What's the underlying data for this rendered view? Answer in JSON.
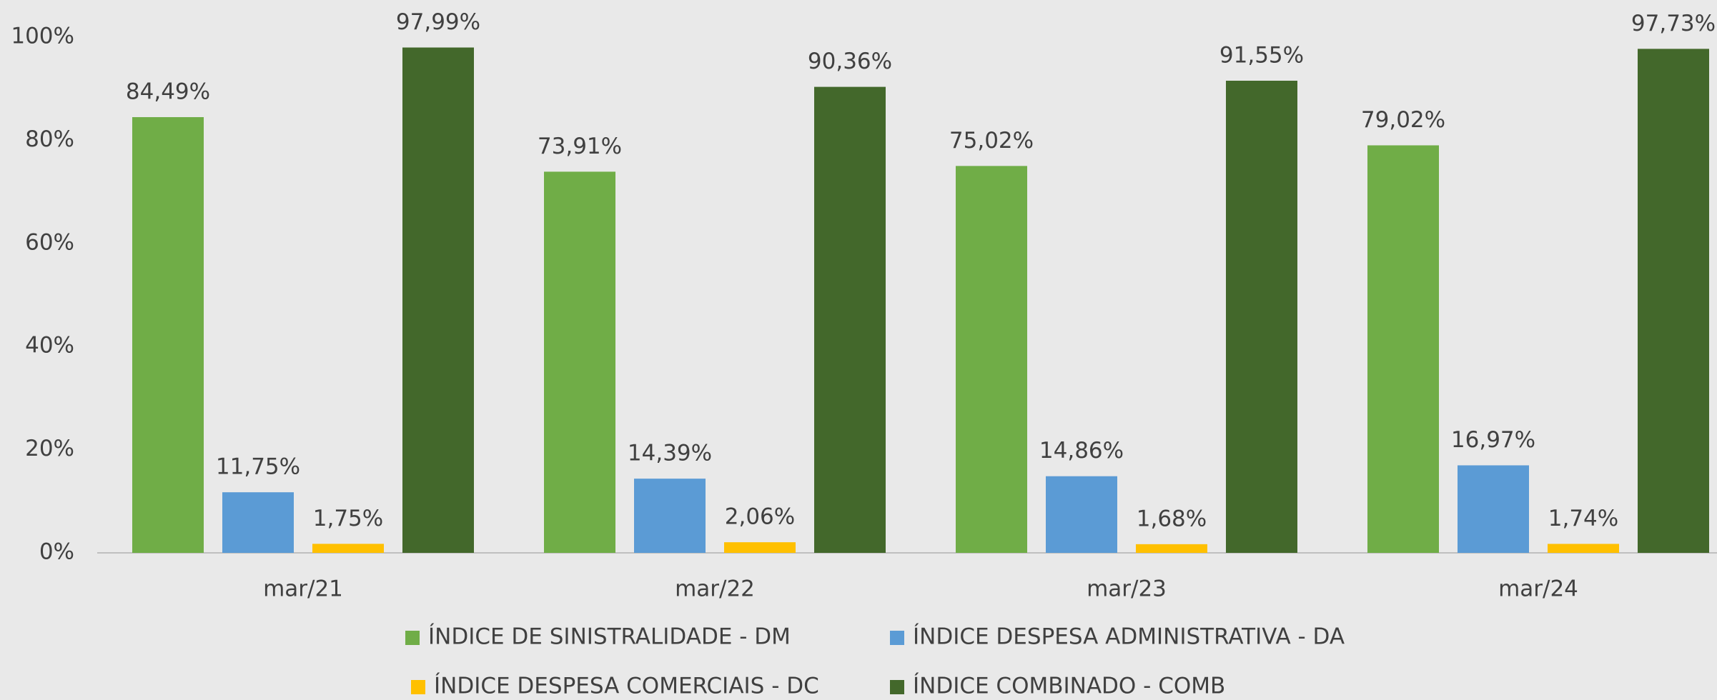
{
  "chart_data": {
    "type": "bar",
    "categories": [
      "mar/21",
      "mar/22",
      "mar/23",
      "mar/24"
    ],
    "series": [
      {
        "name": "ÍNDICE DE SINISTRALIDADE - DM",
        "color": "#70ad47",
        "values": [
          84.49,
          73.91,
          75.02,
          79.02
        ],
        "value_labels": [
          "84,49%",
          "73,91%",
          "75,02%",
          "79,02%"
        ]
      },
      {
        "name": "ÍNDICE DESPESA ADMINISTRATIVA - DA",
        "color": "#5b9bd5",
        "values": [
          11.75,
          14.39,
          14.86,
          16.97
        ],
        "value_labels": [
          "11,75%",
          "14,39%",
          "14,86%",
          "16,97%"
        ]
      },
      {
        "name": "ÍNDICE DESPESA COMERCIAIS - DC",
        "color": "#ffc000",
        "values": [
          1.75,
          2.06,
          1.68,
          1.74
        ],
        "value_labels": [
          "1,75%",
          "2,06%",
          "1,68%",
          "1,74%"
        ]
      },
      {
        "name": "ÍNDICE COMBINADO - COMB",
        "color": "#43682b",
        "values": [
          97.99,
          90.36,
          91.55,
          97.73
        ],
        "value_labels": [
          "97,99%",
          "90,36%",
          "91,55%",
          "97,73%"
        ]
      }
    ],
    "ylim": [
      0,
      100
    ],
    "yticks": [
      {
        "value": 0,
        "label": "0%"
      },
      {
        "value": 20,
        "label": "20%"
      },
      {
        "value": 40,
        "label": "40%"
      },
      {
        "value": 60,
        "label": "60%"
      },
      {
        "value": 80,
        "label": "80%"
      },
      {
        "value": 100,
        "label": "100%"
      }
    ],
    "grid": false,
    "legend": "bottom"
  }
}
